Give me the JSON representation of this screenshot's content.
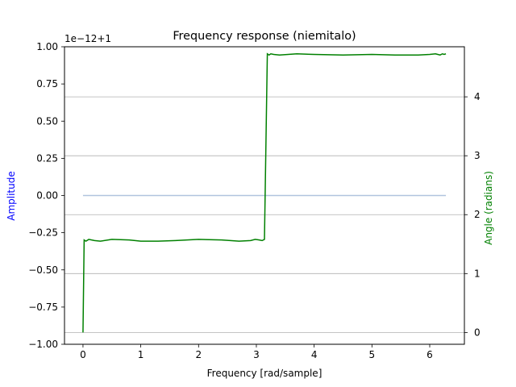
{
  "chart_data": {
    "type": "line",
    "title": "Frequency response (niemitalo)",
    "xlabel": "Frequency [rad/sample]",
    "ylabel_left": "Amplitude",
    "ylabel_right": "Angle (radians)",
    "left_offset_label": "1e−12+1",
    "xlim": [
      -0.32,
      6.6
    ],
    "ylim_left": [
      -1.0,
      1.0
    ],
    "ylim_right": [
      -0.2,
      4.85
    ],
    "x_ticks": [
      0,
      1,
      2,
      3,
      4,
      5,
      6
    ],
    "x_tick_labels": [
      "0",
      "1",
      "2",
      "3",
      "4",
      "5",
      "6"
    ],
    "y_left_ticks": [
      1.0,
      0.75,
      0.5,
      0.25,
      0.0,
      -0.25,
      -0.5,
      -0.75,
      -1.0
    ],
    "y_left_tick_labels": [
      "1.00",
      "0.75",
      "0.50",
      "0.25",
      "0.00",
      "−0.25",
      "−0.50",
      "−0.75",
      "−1.00"
    ],
    "y_right_ticks": [
      0,
      1,
      2,
      3,
      4
    ],
    "y_right_tick_labels": [
      "0",
      "1",
      "2",
      "3",
      "4"
    ],
    "grid": "right-axis horizontal",
    "colors": {
      "amplitude": "#b0c4de",
      "angle": "#008000",
      "left_label": "#0000ff",
      "right_label": "#008000",
      "grid": "#b0b0b0"
    },
    "series": [
      {
        "axis": "left",
        "x": [
          0,
          6.28
        ],
        "y": [
          0.0,
          0.0
        ]
      },
      {
        "axis": "right",
        "x": [
          0.0,
          0.02,
          0.05,
          0.1,
          0.2,
          0.3,
          0.5,
          0.8,
          1.0,
          1.3,
          1.6,
          2.0,
          2.4,
          2.7,
          2.9,
          2.98,
          3.05,
          3.1,
          3.14,
          3.19,
          3.22,
          3.25,
          3.3,
          3.4,
          3.7,
          4.0,
          4.5,
          5.0,
          5.4,
          5.8,
          6.0,
          6.1,
          6.14,
          6.18,
          6.22,
          6.25,
          6.28
        ],
        "y": [
          0.0,
          1.57,
          1.55,
          1.58,
          1.56,
          1.55,
          1.58,
          1.57,
          1.55,
          1.55,
          1.56,
          1.58,
          1.57,
          1.55,
          1.56,
          1.58,
          1.57,
          1.56,
          1.58,
          4.73,
          4.71,
          4.73,
          4.72,
          4.71,
          4.73,
          4.72,
          4.71,
          4.72,
          4.71,
          4.71,
          4.72,
          4.73,
          4.72,
          4.71,
          4.73,
          4.72,
          4.73
        ]
      }
    ]
  }
}
